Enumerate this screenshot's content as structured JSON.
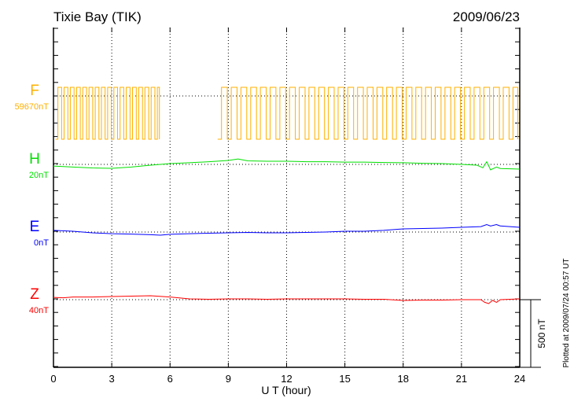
{
  "chart_data": {
    "type": "line",
    "title": "Tixie Bay (TIK)",
    "date": "2009/06/23",
    "xlabel": "U T (hour)",
    "xlim": [
      0,
      24
    ],
    "xticks": [
      "0",
      "3",
      "6",
      "9",
      "12",
      "15",
      "18",
      "21",
      "24"
    ],
    "grid": "dotted vertical every 3 h",
    "scale_bar_label": "500 nT",
    "scale_bar_nT": 500,
    "footer": "Plotted at 2009/07/24 00:57 UT",
    "series": [
      {
        "name": "F",
        "baseline_label": "59670nT",
        "color": "#ffb000",
        "note": "square-wave offsets in nT relative to baseline",
        "high": 64,
        "low": -320,
        "segments": [
          {
            "start": 0.1,
            "end": 5.45,
            "period": 0.32
          },
          {
            "start": 8.45,
            "end": 23.9,
            "period": 0.5
          }
        ]
      },
      {
        "name": "H",
        "baseline_label": "20nT",
        "color": "#00e000",
        "x": [
          0,
          1,
          2,
          3,
          4,
          5,
          6,
          7,
          8,
          9,
          9.5,
          10,
          11,
          12,
          13,
          14,
          15,
          16,
          17,
          18,
          19,
          20,
          21,
          21.8,
          22.1,
          22.3,
          22.5,
          22.8,
          23,
          24
        ],
        "y": [
          -12,
          -20,
          -26,
          -29,
          -20,
          -6,
          6,
          12,
          20,
          29,
          40,
          26,
          23,
          23,
          20,
          20,
          17,
          17,
          14,
          12,
          8,
          6,
          0,
          -6,
          -25,
          20,
          -40,
          -20,
          -30,
          -35
        ]
      },
      {
        "name": "E",
        "baseline_label": "0nT",
        "color": "#0000ff",
        "x": [
          0,
          1,
          2,
          3,
          4,
          5,
          5.5,
          6,
          7,
          8,
          9,
          10,
          11,
          12,
          13,
          14,
          15,
          16,
          17,
          18,
          19,
          20,
          21,
          22,
          22.3,
          22.5,
          22.8,
          23,
          24
        ],
        "y": [
          12,
          6,
          -6,
          -12,
          -15,
          -20,
          -23,
          -17,
          -12,
          -9,
          -6,
          -3,
          -6,
          -6,
          -3,
          0,
          6,
          6,
          12,
          23,
          26,
          29,
          35,
          40,
          55,
          45,
          55,
          45,
          35
        ]
      },
      {
        "name": "Z",
        "baseline_label": "40nT",
        "color": "#ff0000",
        "x": [
          0,
          0.5,
          1,
          2,
          3,
          4,
          5,
          6,
          7,
          8,
          9,
          10,
          11,
          12,
          13,
          14,
          15,
          16,
          17,
          18,
          19,
          20,
          21,
          22,
          22.2,
          22.4,
          22.6,
          22.8,
          23,
          24
        ],
        "y": [
          17,
          14,
          20,
          20,
          23,
          26,
          29,
          20,
          6,
          3,
          6,
          6,
          3,
          6,
          6,
          6,
          6,
          3,
          3,
          -6,
          -3,
          -3,
          0,
          0,
          -20,
          -29,
          -5,
          -20,
          0,
          6
        ]
      }
    ]
  }
}
